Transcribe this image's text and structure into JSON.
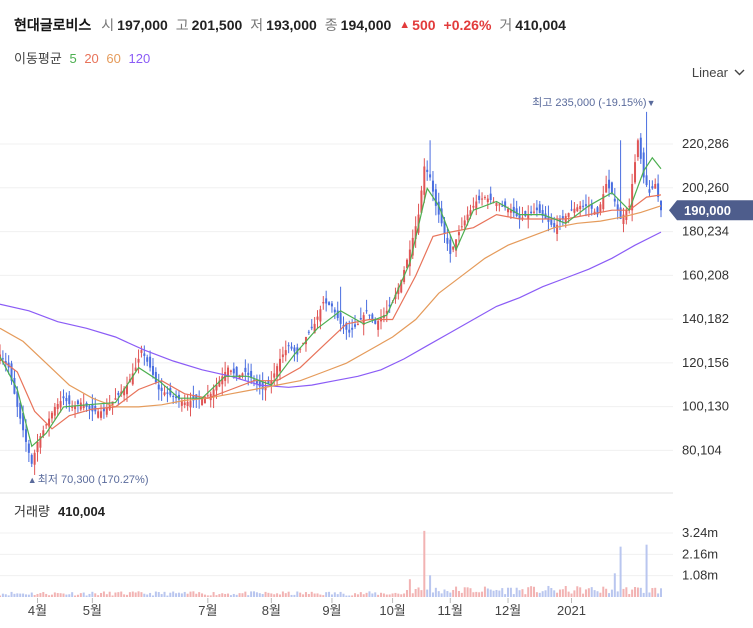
{
  "header": {
    "stock_name": "현대글로비스",
    "open_label": "시",
    "open_value": "197,000",
    "high_label": "고",
    "high_value": "201,500",
    "low_label": "저",
    "low_value": "193,000",
    "close_label": "종",
    "close_value": "194,000",
    "change_arrow": "▲",
    "change_value": "500",
    "change_pct": "+0.26%",
    "volume_label": "거",
    "volume_value": "410,004"
  },
  "moving_average": {
    "label": "이동평균",
    "periods": [
      {
        "period": "5",
        "color": "#4caf50"
      },
      {
        "period": "20",
        "color": "#e8735a"
      },
      {
        "period": "60",
        "color": "#e59b5b"
      },
      {
        "period": "120",
        "color": "#8b5cf6"
      }
    ]
  },
  "scale_selector": {
    "label": "Linear",
    "icon": "chevron-down-icon"
  },
  "colors": {
    "up": "#e05555",
    "down": "#4a6ee0",
    "current_price_bg": "#4e5d8c",
    "annotation": "#5a6b9c"
  },
  "chart_data": {
    "type": "candlestick",
    "ylim": [
      62000,
      245000
    ],
    "y_ticks": [
      {
        "value": 220286,
        "label": "220,286"
      },
      {
        "value": 200260,
        "label": "200,260"
      },
      {
        "value": 180234,
        "label": "180,234"
      },
      {
        "value": 160208,
        "label": "160,208"
      },
      {
        "value": 140182,
        "label": "140,182"
      },
      {
        "value": 120156,
        "label": "120,156"
      },
      {
        "value": 100130,
        "label": "100,130"
      },
      {
        "value": 80104,
        "label": "80,104"
      }
    ],
    "current_price": {
      "value": 190000,
      "label": "190,000"
    },
    "max_annotation": {
      "label": "최고 235,000 (-19.15%)",
      "arrow": "▼",
      "value": 235000
    },
    "min_annotation": {
      "label": "최저 70,300 (170.27%)",
      "arrow": "▲",
      "value": 70300
    },
    "x_ticks": [
      {
        "label": "4월",
        "day": 13
      },
      {
        "label": "5월",
        "day": 32
      },
      {
        "label": "7월",
        "day": 72
      },
      {
        "label": "8월",
        "day": 94
      },
      {
        "label": "9월",
        "day": 115
      },
      {
        "label": "10월",
        "day": 136
      },
      {
        "label": "11월",
        "day": 156
      },
      {
        "label": "12월",
        "day": 176
      },
      {
        "label": "2021",
        "day": 198
      }
    ],
    "price_keyframes": [
      [
        0,
        124000
      ],
      [
        3,
        118000
      ],
      [
        6,
        100000
      ],
      [
        9,
        84000
      ],
      [
        11,
        74000
      ],
      [
        13,
        84000
      ],
      [
        16,
        92000
      ],
      [
        19,
        100000
      ],
      [
        22,
        104000
      ],
      [
        25,
        100000
      ],
      [
        28,
        102000
      ],
      [
        32,
        98000
      ],
      [
        36,
        98000
      ],
      [
        40,
        104000
      ],
      [
        44,
        110000
      ],
      [
        47,
        118000
      ],
      [
        49,
        126000
      ],
      [
        52,
        118000
      ],
      [
        55,
        108000
      ],
      [
        58,
        106000
      ],
      [
        61,
        104000
      ],
      [
        64,
        102000
      ],
      [
        67,
        103000
      ],
      [
        70,
        104000
      ],
      [
        73,
        106000
      ],
      [
        76,
        112000
      ],
      [
        79,
        118000
      ],
      [
        82,
        114000
      ],
      [
        85,
        116000
      ],
      [
        88,
        112000
      ],
      [
        91,
        108000
      ],
      [
        94,
        112000
      ],
      [
        97,
        122000
      ],
      [
        100,
        128000
      ],
      [
        103,
        124000
      ],
      [
        106,
        132000
      ],
      [
        109,
        138000
      ],
      [
        112,
        148000
      ],
      [
        115,
        146000
      ],
      [
        118,
        138000
      ],
      [
        121,
        134000
      ],
      [
        124,
        138000
      ],
      [
        127,
        144000
      ],
      [
        130,
        138000
      ],
      [
        133,
        142000
      ],
      [
        136,
        148000
      ],
      [
        139,
        158000
      ],
      [
        142,
        172000
      ],
      [
        145,
        188000
      ],
      [
        147,
        210000
      ],
      [
        149,
        205000
      ],
      [
        151,
        192000
      ],
      [
        153,
        184000
      ],
      [
        156,
        170000
      ],
      [
        159,
        180000
      ],
      [
        162,
        188000
      ],
      [
        165,
        194000
      ],
      [
        168,
        196000
      ],
      [
        171,
        194000
      ],
      [
        174,
        192000
      ],
      [
        177,
        190000
      ],
      [
        180,
        186000
      ],
      [
        183,
        188000
      ],
      [
        186,
        190000
      ],
      [
        189,
        186000
      ],
      [
        192,
        182000
      ],
      [
        195,
        186000
      ],
      [
        198,
        190000
      ],
      [
        201,
        192000
      ],
      [
        204,
        192000
      ],
      [
        207,
        188000
      ],
      [
        210,
        202000
      ],
      [
        212,
        198000
      ],
      [
        215,
        186000
      ],
      [
        218,
        192000
      ],
      [
        221,
        222000
      ],
      [
        223,
        205000
      ],
      [
        225,
        198000
      ],
      [
        227,
        202000
      ],
      [
        229,
        190000
      ]
    ],
    "spikes": [
      {
        "day": 149,
        "high": 222000
      },
      {
        "day": 118,
        "high": 155000
      },
      {
        "day": 49,
        "high": 128000
      },
      {
        "day": 215,
        "high": 222000
      },
      {
        "day": 224,
        "high": 235000
      }
    ],
    "ma_paths": {
      "ma5": [
        [
          0,
          123000
        ],
        [
          6,
          108000
        ],
        [
          11,
          82000
        ],
        [
          16,
          88000
        ],
        [
          22,
          100000
        ],
        [
          30,
          101000
        ],
        [
          40,
          102000
        ],
        [
          48,
          118000
        ],
        [
          55,
          112000
        ],
        [
          62,
          104000
        ],
        [
          70,
          104000
        ],
        [
          78,
          114000
        ],
        [
          86,
          114000
        ],
        [
          94,
          110000
        ],
        [
          102,
          124000
        ],
        [
          110,
          136000
        ],
        [
          118,
          144000
        ],
        [
          126,
          138000
        ],
        [
          134,
          142000
        ],
        [
          142,
          166000
        ],
        [
          148,
          200000
        ],
        [
          152,
          192000
        ],
        [
          158,
          172000
        ],
        [
          164,
          190000
        ],
        [
          172,
          194000
        ],
        [
          180,
          188000
        ],
        [
          188,
          188000
        ],
        [
          196,
          184000
        ],
        [
          204,
          192000
        ],
        [
          212,
          198000
        ],
        [
          218,
          190000
        ],
        [
          223,
          208000
        ],
        [
          226,
          214000
        ],
        [
          229,
          209000
        ]
      ],
      "ma20": [
        [
          0,
          122000
        ],
        [
          6,
          116000
        ],
        [
          12,
          98000
        ],
        [
          18,
          90000
        ],
        [
          24,
          96000
        ],
        [
          32,
          99000
        ],
        [
          40,
          100000
        ],
        [
          48,
          108000
        ],
        [
          56,
          112000
        ],
        [
          64,
          106000
        ],
        [
          72,
          104000
        ],
        [
          80,
          108000
        ],
        [
          88,
          112000
        ],
        [
          96,
          112000
        ],
        [
          104,
          118000
        ],
        [
          112,
          128000
        ],
        [
          120,
          138000
        ],
        [
          128,
          140000
        ],
        [
          136,
          140000
        ],
        [
          144,
          160000
        ],
        [
          150,
          178000
        ],
        [
          156,
          180000
        ],
        [
          164,
          182000
        ],
        [
          172,
          188000
        ],
        [
          180,
          186000
        ],
        [
          188,
          186000
        ],
        [
          196,
          186000
        ],
        [
          204,
          188000
        ],
        [
          212,
          190000
        ],
        [
          218,
          190000
        ],
        [
          224,
          196000
        ],
        [
          229,
          197000
        ]
      ],
      "ma60": [
        [
          0,
          136000
        ],
        [
          8,
          130000
        ],
        [
          16,
          120000
        ],
        [
          24,
          110000
        ],
        [
          32,
          104000
        ],
        [
          40,
          100000
        ],
        [
          48,
          100000
        ],
        [
          56,
          101000
        ],
        [
          64,
          103000
        ],
        [
          72,
          104000
        ],
        [
          80,
          106000
        ],
        [
          88,
          108000
        ],
        [
          96,
          110000
        ],
        [
          104,
          112000
        ],
        [
          112,
          116000
        ],
        [
          120,
          120000
        ],
        [
          128,
          126000
        ],
        [
          136,
          132000
        ],
        [
          144,
          140000
        ],
        [
          152,
          152000
        ],
        [
          160,
          160000
        ],
        [
          168,
          168000
        ],
        [
          176,
          174000
        ],
        [
          184,
          178000
        ],
        [
          192,
          182000
        ],
        [
          200,
          184000
        ],
        [
          208,
          185000
        ],
        [
          216,
          187000
        ],
        [
          222,
          189000
        ],
        [
          229,
          192000
        ]
      ],
      "ma120": [
        [
          0,
          147000
        ],
        [
          10,
          144000
        ],
        [
          20,
          139000
        ],
        [
          30,
          136000
        ],
        [
          40,
          132000
        ],
        [
          50,
          126000
        ],
        [
          60,
          121000
        ],
        [
          70,
          117000
        ],
        [
          80,
          114000
        ],
        [
          90,
          110000
        ],
        [
          100,
          109000
        ],
        [
          108,
          110000
        ],
        [
          116,
          112000
        ],
        [
          124,
          114000
        ],
        [
          132,
          117000
        ],
        [
          140,
          122000
        ],
        [
          148,
          128000
        ],
        [
          156,
          134000
        ],
        [
          164,
          140000
        ],
        [
          172,
          146000
        ],
        [
          180,
          150000
        ],
        [
          188,
          155000
        ],
        [
          196,
          159000
        ],
        [
          204,
          163000
        ],
        [
          212,
          168000
        ],
        [
          220,
          174000
        ],
        [
          229,
          180000
        ]
      ]
    },
    "volume": {
      "label": "거래량",
      "value": "410,004",
      "ticks": [
        {
          "value": 3.24,
          "label": "3.24m"
        },
        {
          "value": 2.16,
          "label": "2.16m"
        },
        {
          "value": 1.08,
          "label": "1.08m"
        }
      ],
      "ylim": [
        0,
        3.9
      ],
      "spikes": [
        {
          "day": 147,
          "value": 3.35
        },
        {
          "day": 215,
          "value": 2.55
        },
        {
          "day": 224,
          "value": 2.65
        },
        {
          "day": 142,
          "value": 0.9
        },
        {
          "day": 149,
          "value": 1.1
        },
        {
          "day": 213,
          "value": 1.2
        }
      ]
    }
  }
}
